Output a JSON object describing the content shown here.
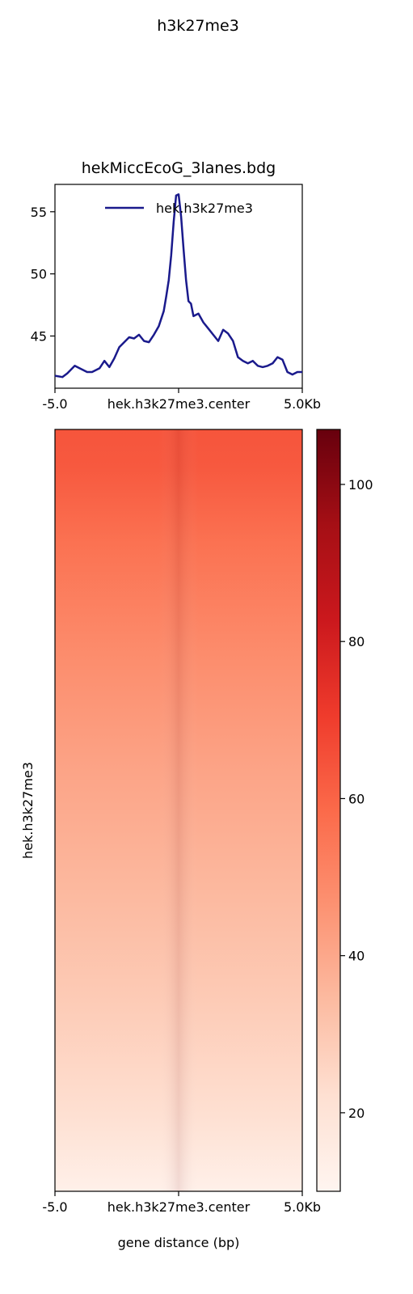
{
  "suptitle": "h3k27me3",
  "chart_data": [
    {
      "type": "line",
      "title": "hekMiccEcoG_3lanes.bdg",
      "xlabel": "",
      "ylabel": "",
      "x_ticks": [
        "-5.0",
        "hek.h3k27me3.center",
        "5.0Kb"
      ],
      "xlim": [
        -5.0,
        5.0
      ],
      "ylim": [
        40.8,
        57.2
      ],
      "y_ticks": [
        45,
        50,
        55
      ],
      "legend_position": "upper-center",
      "grid": false,
      "series": [
        {
          "name": "hek.h3k27me3",
          "color": "#1a1a8c",
          "x": [
            -5.0,
            -4.7,
            -4.5,
            -4.2,
            -4.0,
            -3.7,
            -3.5,
            -3.2,
            -3.0,
            -2.8,
            -2.6,
            -2.4,
            -2.2,
            -2.0,
            -1.8,
            -1.6,
            -1.4,
            -1.2,
            -1.0,
            -0.8,
            -0.6,
            -0.5,
            -0.4,
            -0.3,
            -0.2,
            -0.1,
            0.0,
            0.1,
            0.2,
            0.3,
            0.4,
            0.5,
            0.6,
            0.8,
            1.0,
            1.2,
            1.4,
            1.6,
            1.8,
            2.0,
            2.2,
            2.4,
            2.6,
            2.8,
            3.0,
            3.2,
            3.4,
            3.6,
            3.8,
            4.0,
            4.2,
            4.4,
            4.6,
            4.8,
            5.0
          ],
          "values": [
            41.8,
            41.7,
            42.0,
            42.6,
            42.4,
            42.1,
            42.1,
            42.4,
            43.0,
            42.5,
            43.2,
            44.1,
            44.5,
            44.9,
            44.8,
            45.1,
            44.6,
            44.5,
            45.1,
            45.8,
            47.0,
            48.2,
            49.5,
            51.5,
            54.2,
            56.3,
            56.4,
            54.6,
            52.0,
            49.5,
            47.8,
            47.6,
            46.6,
            46.8,
            46.1,
            45.6,
            45.1,
            44.6,
            45.5,
            45.2,
            44.6,
            43.3,
            43.0,
            42.8,
            43.0,
            42.6,
            42.5,
            42.6,
            42.8,
            43.3,
            43.1,
            42.1,
            41.9,
            42.1,
            42.1
          ]
        }
      ]
    },
    {
      "type": "heatmap",
      "ylabel": "hek.h3k27me3",
      "xlabel": "gene distance (bp)",
      "x_ticks": [
        "-5.0",
        "hek.h3k27me3.center",
        "5.0Kb"
      ],
      "colormap": "Reds",
      "colorbar": {
        "vmin": 10,
        "vmax": 107,
        "ticks": [
          20,
          40,
          60,
          80,
          100
        ]
      },
      "row_intensity": [
        {
          "row_fraction": 0.0,
          "edge": 64,
          "center": 68
        },
        {
          "row_fraction": 0.05,
          "edge": 63,
          "center": 67
        },
        {
          "row_fraction": 0.15,
          "edge": 56,
          "center": 60
        },
        {
          "row_fraction": 0.3,
          "edge": 48,
          "center": 52
        },
        {
          "row_fraction": 0.45,
          "edge": 41,
          "center": 45
        },
        {
          "row_fraction": 0.6,
          "edge": 35,
          "center": 39
        },
        {
          "row_fraction": 0.75,
          "edge": 29,
          "center": 32
        },
        {
          "row_fraction": 0.9,
          "edge": 22,
          "center": 24
        },
        {
          "row_fraction": 1.0,
          "edge": 13,
          "center": 14
        }
      ]
    }
  ]
}
